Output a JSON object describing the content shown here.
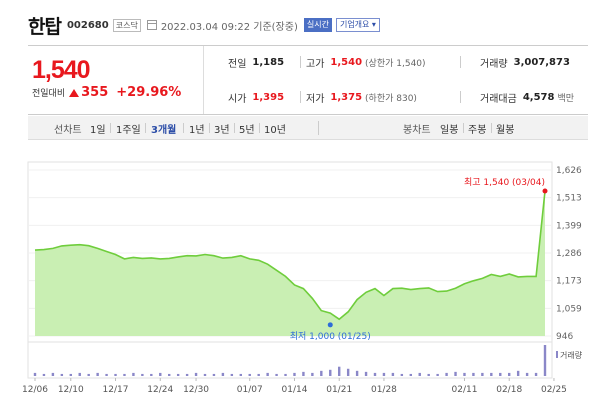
{
  "header": {
    "name": "한탑",
    "code": "002680",
    "market": "코스닥",
    "timestamp": "2022.03.04 09:22 기준(장중)",
    "realtime_label": "실시간",
    "company_label": "기업개요 ▾"
  },
  "price": {
    "current": "1,540",
    "change_label": "전일대비",
    "change_amount": "355",
    "change_percent": "+29.96%"
  },
  "stats": {
    "prev_close_label": "전일",
    "prev_close": "1,185",
    "open_label": "시가",
    "open": "1,395",
    "high_label": "고가",
    "high": "1,540",
    "high_note": "(상한가 1,540)",
    "low_label": "저가",
    "low": "1,375",
    "low_note": "(하한가 830)",
    "volume_label": "거래량",
    "volume": "3,007,873",
    "amount_label": "거래대금",
    "amount": "4,578",
    "amount_unit": "백만"
  },
  "period_bar": {
    "line_label": "선차트",
    "periods": [
      "1일",
      "1주일",
      "3개월",
      "1년",
      "3년",
      "5년",
      "10년"
    ],
    "active": "3개월",
    "candle_label": "봉차트",
    "candles": [
      "일봉",
      "주봉",
      "월봉"
    ]
  },
  "chart_data": {
    "type": "area",
    "ylim": [
      946,
      1626
    ],
    "y_ticks": [
      "1,626",
      "1,513",
      "1,399",
      "1,286",
      "1,173",
      "1,059",
      "946"
    ],
    "y_tick_values": [
      1626,
      1513,
      1399,
      1286,
      1173,
      1059,
      946
    ],
    "x_tick_labels": [
      "12/06",
      "12/10",
      "12/17",
      "12/24",
      "12/30",
      "01/07",
      "01/14",
      "01/21",
      "01/28",
      "02/11",
      "02/18",
      "02/25"
    ],
    "x_tick_index": [
      0,
      4,
      9,
      14,
      18,
      24,
      29,
      34,
      39,
      48,
      53,
      58
    ],
    "series": [
      {
        "values": [
          1298,
          1300,
          1305,
          1315,
          1318,
          1320,
          1316,
          1305,
          1292,
          1280,
          1262,
          1268,
          1264,
          1266,
          1262,
          1264,
          1270,
          1275,
          1274,
          1280,
          1275,
          1265,
          1268,
          1275,
          1262,
          1256,
          1240,
          1215,
          1190,
          1155,
          1140,
          1100,
          1050,
          1040,
          1015,
          1045,
          1095,
          1125,
          1140,
          1112,
          1140,
          1142,
          1136,
          1140,
          1143,
          1128,
          1130,
          1142,
          1160,
          1172,
          1182,
          1198,
          1190,
          1200,
          1188,
          1190,
          1190,
          1540
        ]
      }
    ],
    "volume": [
      3,
      2,
      3,
      2,
      2,
      3,
      2,
      3,
      2,
      2,
      2,
      3,
      2,
      2,
      3,
      2,
      2,
      2,
      3,
      2,
      2,
      3,
      2,
      2,
      2,
      2,
      3,
      2,
      2,
      3,
      4,
      3,
      5,
      6,
      9,
      7,
      5,
      4,
      3,
      3,
      3,
      2,
      2,
      3,
      2,
      2,
      3,
      4,
      3,
      3,
      3,
      3,
      3,
      3,
      5,
      3,
      3,
      30
    ],
    "volume_label": "거래량",
    "max_annotation": "최고 1,540 (03/04)",
    "min_annotation": "최저 1,000 (01/25)",
    "min_value": 1000,
    "min_index": 33,
    "max_index": 57
  },
  "colors": {
    "accent_red": "#e8181e",
    "line_green": "#6fcd3c",
    "area_fill": "#c9efb3",
    "volume_bar": "#8a87c8",
    "min_marker": "#2d6cd8"
  }
}
